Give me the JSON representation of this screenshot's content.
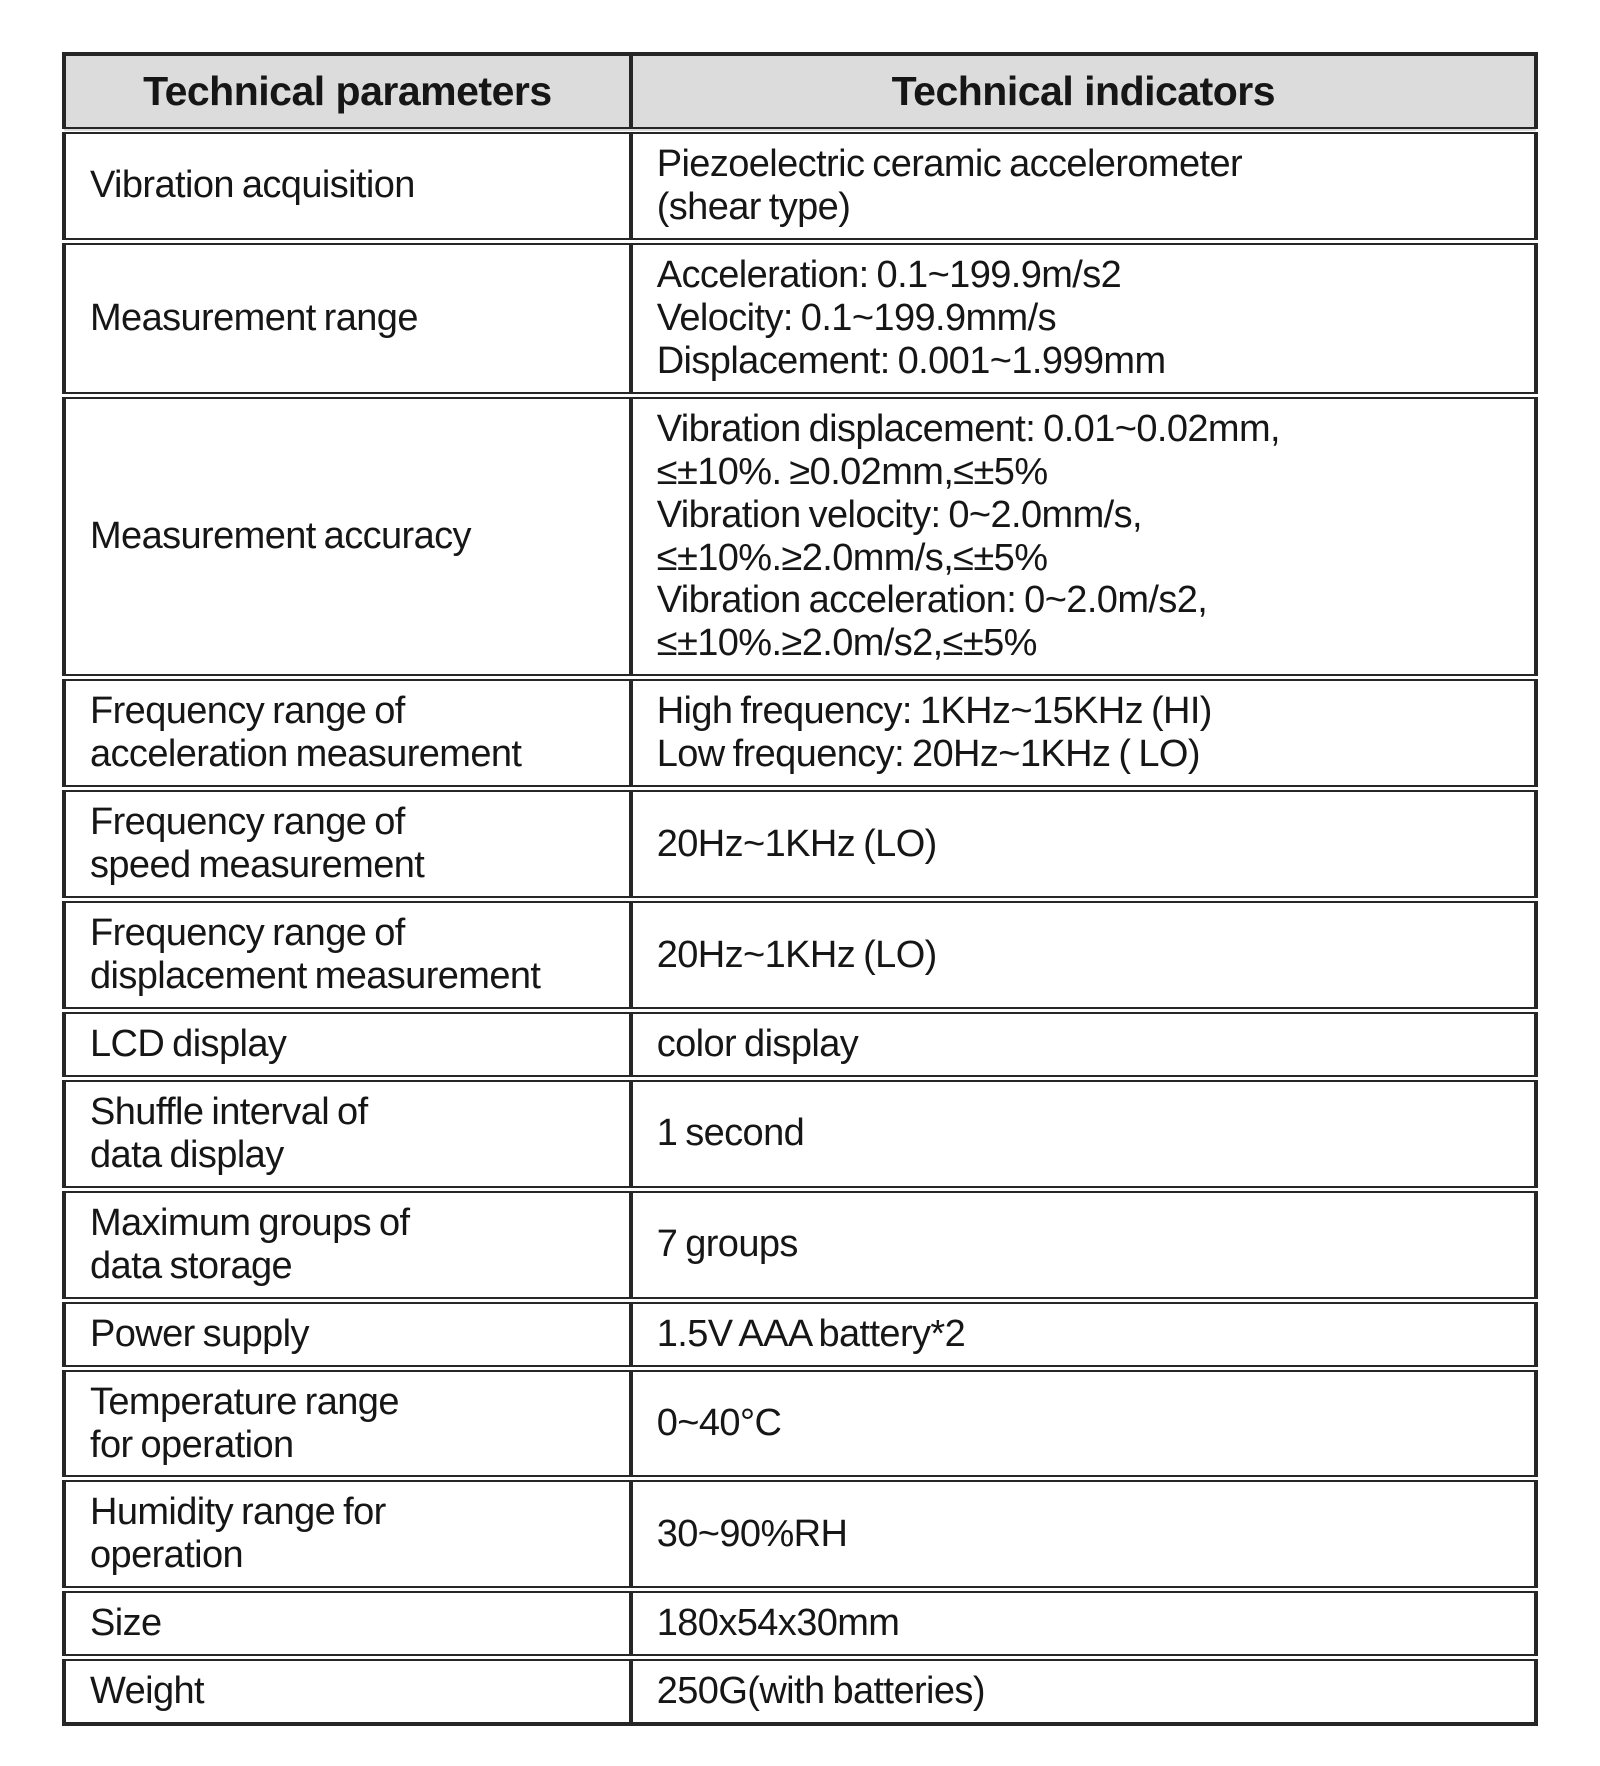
{
  "colors": {
    "header_bg": "#dcdcdc",
    "border": "#262626",
    "text": "#161616",
    "page_bg": "#ffffff"
  },
  "table": {
    "headers": [
      "Technical parameters",
      "Technical indicators"
    ],
    "rows": [
      {
        "param_lines": [
          "Vibration acquisition"
        ],
        "value_lines": [
          "Piezoelectric ceramic accelerometer",
          "(shear type)"
        ]
      },
      {
        "param_lines": [
          "Measurement range"
        ],
        "value_lines": [
          "Acceleration: 0.1~199.9m/s2",
          "Velocity: 0.1~199.9mm/s",
          "Displacement: 0.001~1.999mm"
        ]
      },
      {
        "param_lines": [
          "Measurement accuracy"
        ],
        "value_lines": [
          "Vibration displacement: 0.01~0.02mm,",
          "≤±10%. ≥0.02mm,≤±5%",
          "Vibration velocity: 0~2.0mm/s,",
          "≤±10%.≥2.0mm/s,≤±5%",
          "Vibration acceleration: 0~2.0m/s2,",
          "≤±10%.≥2.0m/s2,≤±5%"
        ]
      },
      {
        "param_lines": [
          "Frequency range of",
          "acceleration measurement"
        ],
        "value_lines": [
          "High frequency: 1KHz~15KHz (HI)",
          "Low frequency: 20Hz~1KHz ( LO)"
        ]
      },
      {
        "param_lines": [
          "Frequency range of",
          "speed measurement"
        ],
        "value_lines": [
          "20Hz~1KHz (LO)"
        ]
      },
      {
        "param_lines": [
          "Frequency range of",
          "displacement measurement"
        ],
        "value_lines": [
          "20Hz~1KHz (LO)"
        ]
      },
      {
        "param_lines": [
          "LCD display"
        ],
        "value_lines": [
          "color display"
        ]
      },
      {
        "param_lines": [
          "Shuffle interval of",
          "data display"
        ],
        "value_lines": [
          "1 second"
        ]
      },
      {
        "param_lines": [
          "Maximum groups of",
          "data storage"
        ],
        "value_lines": [
          "7 groups"
        ]
      },
      {
        "param_lines": [
          "Power supply"
        ],
        "value_lines": [
          "1.5V AAA battery*2"
        ]
      },
      {
        "param_lines": [
          "Temperature range",
          "for operation"
        ],
        "value_lines": [
          "0~40°C"
        ]
      },
      {
        "param_lines": [
          "Humidity range for",
          "operation"
        ],
        "value_lines": [
          "30~90%RH"
        ]
      },
      {
        "param_lines": [
          "Size"
        ],
        "value_lines": [
          "180x54x30mm"
        ]
      },
      {
        "param_lines": [
          "Weight"
        ],
        "value_lines": [
          "250G(with batteries)"
        ]
      }
    ]
  }
}
